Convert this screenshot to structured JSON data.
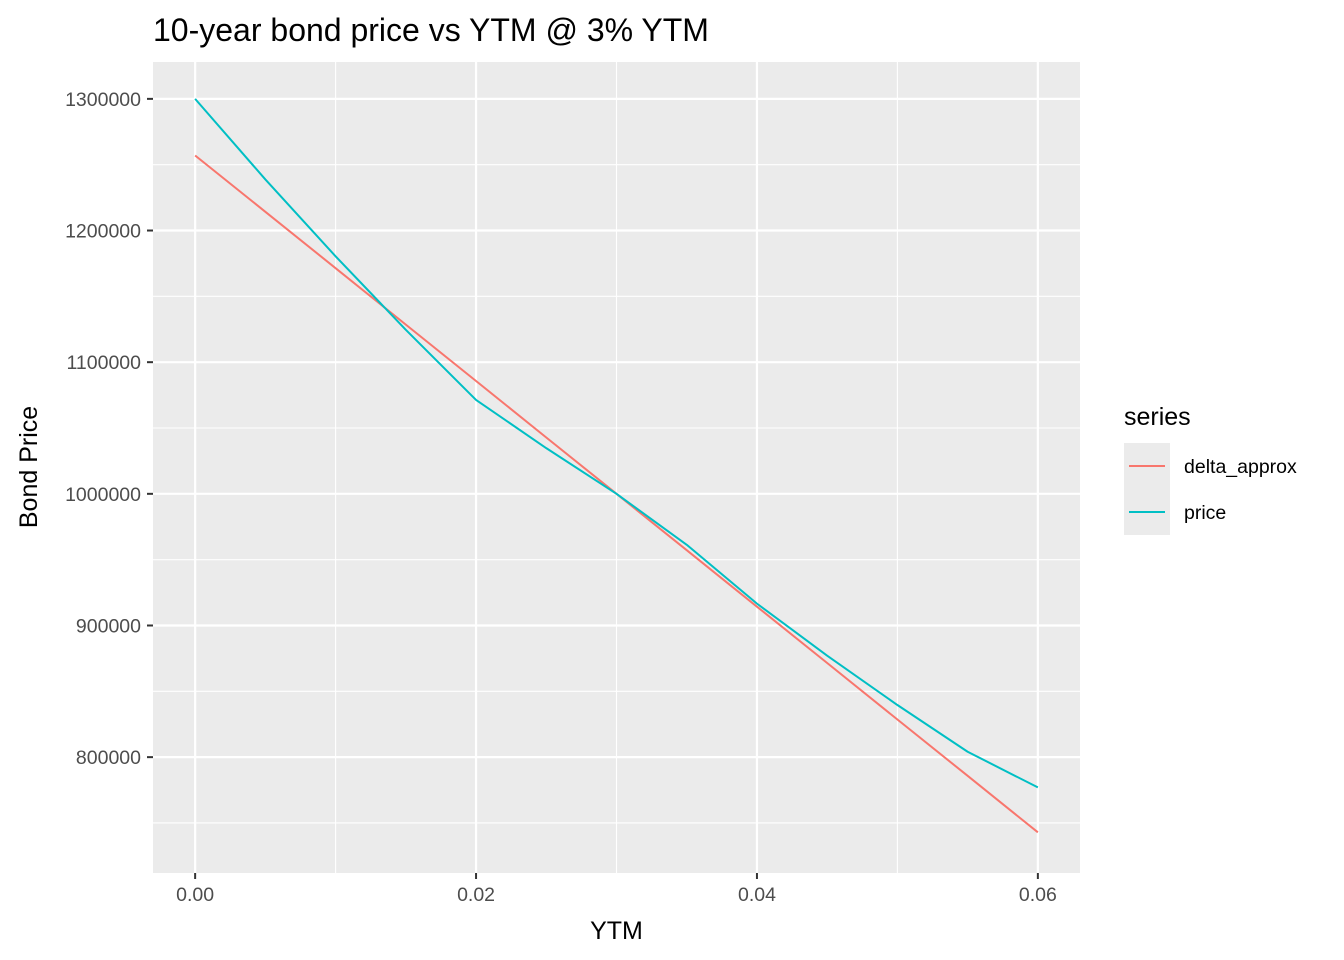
{
  "chart_data": {
    "type": "line",
    "title": "10-year bond price vs YTM @ 3% YTM",
    "xlabel": "YTM",
    "ylabel": "Bond Price",
    "xlim": [
      -0.003,
      0.063
    ],
    "ylim": [
      712000,
      1328000
    ],
    "x_ticks": [
      0.0,
      0.02,
      0.04,
      0.06
    ],
    "x_tick_labels": [
      "0.00",
      "0.02",
      "0.04",
      "0.06"
    ],
    "y_ticks": [
      800000,
      900000,
      1000000,
      1100000,
      1200000,
      1300000
    ],
    "y_tick_labels": [
      "800000",
      "900000",
      "1000000",
      "1100000",
      "1200000",
      "1300000"
    ],
    "grid": true,
    "legend_position": "right",
    "legend_title": "series",
    "x": [
      0.0,
      0.005,
      0.01,
      0.015,
      0.02,
      0.025,
      0.03,
      0.035,
      0.04,
      0.045,
      0.05,
      0.055,
      0.06
    ],
    "series": [
      {
        "name": "delta_approx",
        "color": "#F8766D",
        "values": [
          1257000,
          1214200,
          1171400,
          1128500,
          1085700,
          1042800,
          1000000,
          957200,
          914300,
          871500,
          828600,
          785800,
          742900
        ]
      },
      {
        "name": "price",
        "color": "#00BFC4",
        "values": [
          1300000,
          1238800,
          1180400,
          1124600,
          1071300,
          1034700,
          1000000,
          961300,
          916600,
          877100,
          839600,
          804100,
          777000
        ]
      }
    ]
  }
}
